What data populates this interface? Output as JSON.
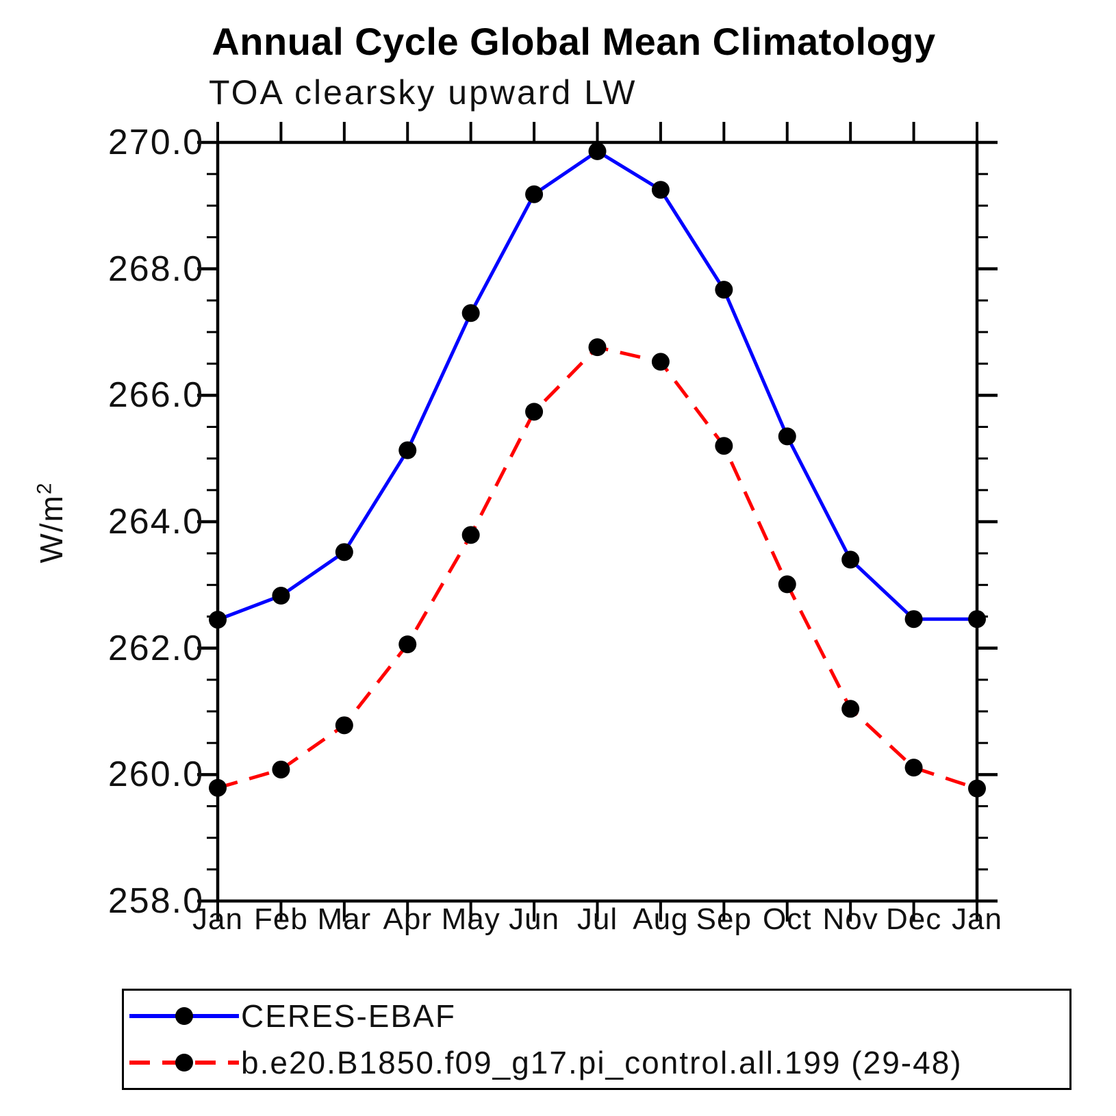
{
  "chart_data": {
    "type": "line",
    "title": "Annual Cycle Global Mean Climatology",
    "subtitle": "TOA clearsky upward LW",
    "ylabel": "W/m²",
    "x_categories": [
      "Jan",
      "Feb",
      "Mar",
      "Apr",
      "May",
      "Jun",
      "Jul",
      "Aug",
      "Sep",
      "Oct",
      "Nov",
      "Dec",
      "Jan"
    ],
    "ylim": [
      258.0,
      270.0
    ],
    "y_major_tick_step": 2.0,
    "y_minor_tick_step": 0.5,
    "y_tick_labels": [
      "258.0",
      "260.0",
      "262.0",
      "264.0",
      "266.0",
      "268.0",
      "270.0"
    ],
    "grid": false,
    "legend_position": "bottom-left",
    "series": [
      {
        "name": "CERES-EBAF",
        "color": "#0000ff",
        "line_style": "solid",
        "marker": "filled-circle",
        "marker_color": "#000000",
        "values": [
          262.45,
          262.83,
          263.52,
          265.13,
          267.3,
          269.18,
          269.86,
          269.25,
          267.67,
          265.35,
          263.4,
          262.46,
          262.46
        ]
      },
      {
        "name": "b.e20.B1850.f09_g17.pi_control.all.199 (29-48)",
        "color": "#ff0000",
        "line_style": "dashed",
        "marker": "filled-circle",
        "marker_color": "#000000",
        "values": [
          259.79,
          260.08,
          260.78,
          262.06,
          263.79,
          265.74,
          266.76,
          266.53,
          265.2,
          263.01,
          261.04,
          260.11,
          259.78
        ]
      }
    ],
    "axis_color": "#000000",
    "background_color": "#ffffff"
  }
}
